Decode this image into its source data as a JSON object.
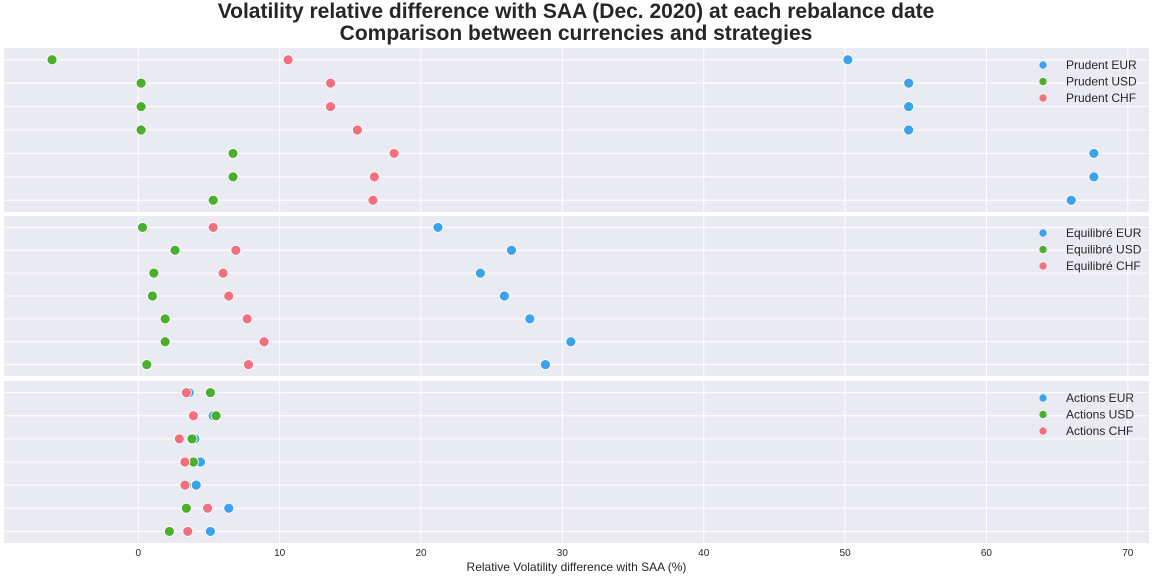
{
  "chart_data": {
    "type": "scatter",
    "title": "Volatility relative difference with SAA (Dec. 2020) at each rebalance date",
    "subtitle": "Comparison between currencies and strategies",
    "xlabel": "Relative Volatility difference with SAA (%)",
    "xlim": [
      -9.5,
      71.5
    ],
    "xticks": [
      0,
      10,
      20,
      30,
      40,
      50,
      60,
      70
    ],
    "grid": true,
    "legend_position": "top-right",
    "colors": {
      "EUR": "#3ba3ec",
      "USD": "#4bae2d",
      "CHF": "#f07080"
    },
    "panels": [
      {
        "series": [
          {
            "name": "Prudent EUR",
            "currency": "EUR",
            "values": [
              50.2,
              54.5,
              54.5,
              54.5,
              67.6,
              67.6,
              66.0
            ]
          },
          {
            "name": "Prudent USD",
            "currency": "USD",
            "values": [
              -6.1,
              0.2,
              0.2,
              0.2,
              6.7,
              6.7,
              5.3
            ]
          },
          {
            "name": "Prudent CHF",
            "currency": "CHF",
            "values": [
              10.6,
              13.6,
              13.6,
              15.5,
              18.1,
              16.7,
              16.6
            ]
          }
        ]
      },
      {
        "series": [
          {
            "name": "Equilibré EUR",
            "currency": "EUR",
            "values": [
              21.2,
              26.4,
              24.2,
              25.9,
              27.7,
              30.6,
              28.8
            ]
          },
          {
            "name": "Equilibré USD",
            "currency": "USD",
            "values": [
              0.3,
              2.6,
              1.1,
              1.0,
              1.9,
              1.9,
              0.6
            ]
          },
          {
            "name": "Equilibré CHF",
            "currency": "CHF",
            "values": [
              5.3,
              6.9,
              6.0,
              6.4,
              7.7,
              8.9,
              7.8
            ]
          }
        ]
      },
      {
        "series": [
          {
            "name": "Actions EUR",
            "currency": "EUR",
            "values": [
              3.6,
              5.3,
              4.0,
              4.4,
              4.1,
              6.4,
              5.1
            ]
          },
          {
            "name": "Actions USD",
            "currency": "USD",
            "values": [
              5.1,
              5.5,
              3.8,
              3.9,
              3.4,
              3.4,
              2.2
            ]
          },
          {
            "name": "Actions CHF",
            "currency": "CHF",
            "values": [
              3.4,
              3.9,
              2.9,
              3.3,
              3.3,
              4.9,
              3.5
            ]
          }
        ]
      }
    ]
  }
}
